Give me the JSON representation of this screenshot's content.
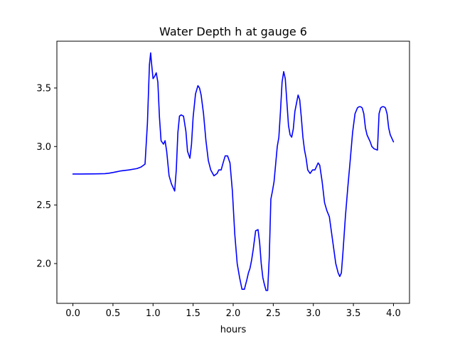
{
  "chart_data": {
    "type": "line",
    "title": "Water Depth h at gauge 6",
    "xlabel": "hours",
    "ylabel": "",
    "xlim": [
      -0.2,
      4.2
    ],
    "ylim": [
      1.66,
      3.9
    ],
    "xticks": [
      0.0,
      0.5,
      1.0,
      1.5,
      2.0,
      2.5,
      3.0,
      3.5,
      4.0
    ],
    "xtick_labels": [
      "0.0",
      "0.5",
      "1.0",
      "1.5",
      "2.0",
      "2.5",
      "3.0",
      "3.5",
      "4.0"
    ],
    "yticks": [
      2.0,
      2.5,
      3.0,
      3.5
    ],
    "ytick_labels": [
      "2.0",
      "2.5",
      "3.0",
      "3.5"
    ],
    "grid": false,
    "series": [
      {
        "color": "#0000ff",
        "x": [
          0.0,
          0.1,
          0.2,
          0.3,
          0.4,
          0.45,
          0.5,
          0.55,
          0.6,
          0.7,
          0.8,
          0.85,
          0.9,
          0.93,
          0.955,
          0.97,
          0.98,
          1.0,
          1.02,
          1.04,
          1.06,
          1.08,
          1.1,
          1.13,
          1.15,
          1.17,
          1.2,
          1.23,
          1.27,
          1.29,
          1.31,
          1.33,
          1.35,
          1.38,
          1.41,
          1.43,
          1.46,
          1.48,
          1.5,
          1.53,
          1.56,
          1.58,
          1.6,
          1.63,
          1.66,
          1.69,
          1.72,
          1.76,
          1.8,
          1.82,
          1.85,
          1.87,
          1.9,
          1.93,
          1.96,
          1.99,
          2.02,
          2.05,
          2.08,
          2.11,
          2.14,
          2.17,
          2.19,
          2.21,
          2.23,
          2.25,
          2.28,
          2.31,
          2.33,
          2.35,
          2.37,
          2.39,
          2.41,
          2.43,
          2.45,
          2.47,
          2.49,
          2.51,
          2.53,
          2.55,
          2.57,
          2.59,
          2.61,
          2.63,
          2.65,
          2.67,
          2.69,
          2.71,
          2.73,
          2.75,
          2.77,
          2.79,
          2.81,
          2.83,
          2.85,
          2.87,
          2.89,
          2.91,
          2.93,
          2.96,
          2.99,
          3.02,
          3.04,
          3.06,
          3.08,
          3.11,
          3.14,
          3.17,
          3.2,
          3.22,
          3.25,
          3.28,
          3.31,
          3.33,
          3.35,
          3.37,
          3.4,
          3.43,
          3.46,
          3.49,
          3.52,
          3.55,
          3.57,
          3.59,
          3.61,
          3.63,
          3.65,
          3.67,
          3.69,
          3.71,
          3.73,
          3.76,
          3.78,
          3.8,
          3.82,
          3.84,
          3.86,
          3.88,
          3.9,
          3.92,
          3.94,
          3.96,
          3.98,
          4.0
        ],
        "y": [
          2.765,
          2.765,
          2.766,
          2.767,
          2.768,
          2.772,
          2.778,
          2.785,
          2.792,
          2.8,
          2.812,
          2.825,
          2.85,
          3.2,
          3.7,
          3.8,
          3.72,
          3.58,
          3.6,
          3.63,
          3.55,
          3.25,
          3.05,
          3.02,
          3.05,
          2.96,
          2.75,
          2.68,
          2.62,
          2.8,
          3.12,
          3.26,
          3.27,
          3.26,
          3.13,
          2.96,
          2.9,
          3.02,
          3.25,
          3.45,
          3.52,
          3.5,
          3.44,
          3.28,
          3.05,
          2.88,
          2.8,
          2.75,
          2.77,
          2.8,
          2.8,
          2.85,
          2.92,
          2.92,
          2.86,
          2.62,
          2.25,
          2.0,
          1.88,
          1.78,
          1.78,
          1.86,
          1.92,
          1.96,
          2.03,
          2.12,
          2.28,
          2.29,
          2.18,
          2.0,
          1.88,
          1.82,
          1.77,
          1.77,
          2.05,
          2.55,
          2.62,
          2.7,
          2.85,
          3.0,
          3.08,
          3.3,
          3.55,
          3.64,
          3.58,
          3.38,
          3.18,
          3.1,
          3.08,
          3.15,
          3.3,
          3.37,
          3.44,
          3.4,
          3.25,
          3.08,
          2.97,
          2.9,
          2.8,
          2.77,
          2.8,
          2.8,
          2.83,
          2.86,
          2.84,
          2.7,
          2.52,
          2.45,
          2.4,
          2.3,
          2.15,
          2.0,
          1.92,
          1.89,
          1.92,
          2.1,
          2.4,
          2.65,
          2.88,
          3.12,
          3.28,
          3.33,
          3.34,
          3.34,
          3.33,
          3.28,
          3.16,
          3.1,
          3.07,
          3.04,
          3.0,
          2.98,
          2.975,
          2.97,
          3.28,
          3.33,
          3.34,
          3.34,
          3.33,
          3.28,
          3.16,
          3.1,
          3.07,
          3.04
        ]
      }
    ]
  }
}
